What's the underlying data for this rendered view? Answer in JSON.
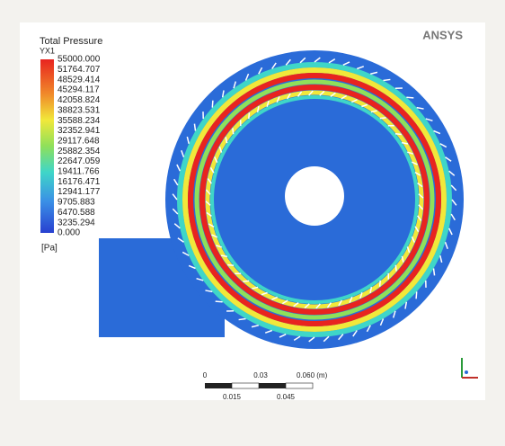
{
  "legend": {
    "title": "Total Pressure",
    "variable": "YX1",
    "labels": [
      "55000.000",
      "51764.707",
      "48529.414",
      "45294.117",
      "42058.824",
      "38823.531",
      "35588.234",
      "32352.941",
      "29117.648",
      "25882.354",
      "22647.059",
      "19411.766",
      "16176.471",
      "12941.177",
      "9705.883",
      "6470.588",
      "3235.294",
      "0.000"
    ],
    "unit": "[Pa]"
  },
  "logo": "ANSYS",
  "scale_bar": {
    "top_labels": [
      "0",
      "0.03",
      "0.060 (m)"
    ],
    "bottom_labels": [
      "0.015",
      "0.045"
    ]
  }
}
